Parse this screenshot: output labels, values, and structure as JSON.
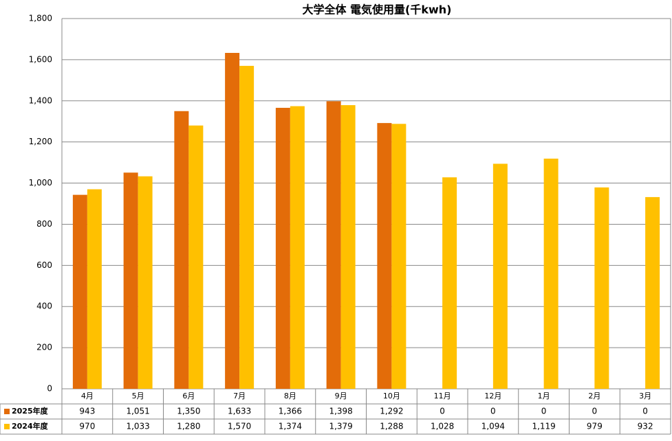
{
  "chart_data": {
    "type": "bar",
    "title": "大学全体 電気使用量(千kwh)",
    "categories": [
      "4月",
      "5月",
      "6月",
      "7月",
      "8月",
      "9月",
      "10月",
      "11月",
      "12月",
      "1月",
      "2月",
      "3月"
    ],
    "series": [
      {
        "name": "2025年度",
        "color": "#e36c09",
        "values": [
          943,
          1051,
          1350,
          1633,
          1366,
          1398,
          1292,
          0,
          0,
          0,
          0,
          0
        ],
        "value_labels": [
          "943",
          "1,051",
          "1,350",
          "1,633",
          "1,366",
          "1,398",
          "1,292",
          "0",
          "0",
          "0",
          "0",
          "0"
        ]
      },
      {
        "name": "2024年度",
        "color": "#ffc000",
        "values": [
          970,
          1033,
          1280,
          1570,
          1374,
          1379,
          1288,
          1028,
          1094,
          1119,
          979,
          932
        ],
        "value_labels": [
          "970",
          "1,033",
          "1,280",
          "1,570",
          "1,374",
          "1,379",
          "1,288",
          "1,028",
          "1,094",
          "1,119",
          "979",
          "932"
        ]
      }
    ],
    "ylim": [
      0,
      1800
    ],
    "yticks": [
      0,
      200,
      400,
      600,
      800,
      {
        "value": 1000,
        "label": "1,000"
      },
      {
        "value": 1200,
        "label": "1,200"
      },
      {
        "value": 1400,
        "label": "1,400"
      },
      {
        "value": 1600,
        "label": "1,600"
      },
      {
        "value": 1800,
        "label": "1,800"
      }
    ],
    "grid": true
  }
}
